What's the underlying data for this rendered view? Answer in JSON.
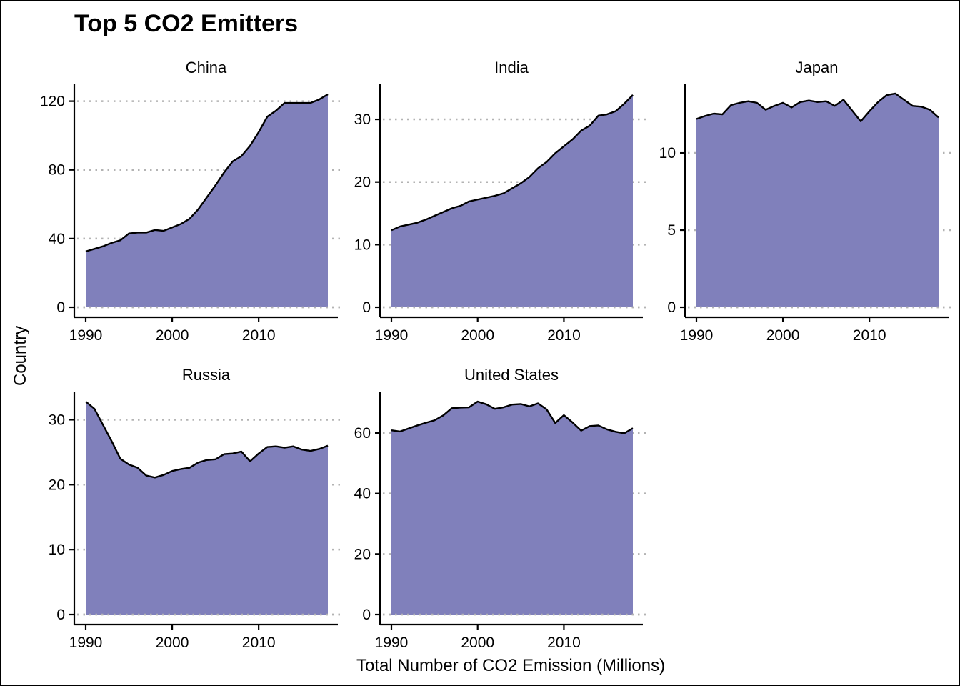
{
  "chart_data": {
    "type": "area",
    "title": "Top 5 CO2 Emitters",
    "xlabel": "Total Number of CO2 Emission (Millions)",
    "ylabel": "Country",
    "grid": "horizontal dotted major gridlines",
    "fill_color": "#8080bb",
    "line_color": "#000000",
    "x": [
      1990,
      1991,
      1992,
      1993,
      1994,
      1995,
      1996,
      1997,
      1998,
      1999,
      2000,
      2001,
      2002,
      2003,
      2004,
      2005,
      2006,
      2007,
      2008,
      2009,
      2010,
      2011,
      2012,
      2013,
      2014,
      2015,
      2016,
      2017,
      2018
    ],
    "panels": [
      {
        "name": "China",
        "ylim": [
          0,
          124
        ],
        "yticks": [
          "0",
          "40",
          "80",
          "120"
        ],
        "ytick_values": [
          0,
          40,
          80,
          120
        ],
        "xticks": [
          "1990",
          "2000",
          "2010"
        ],
        "values": [
          32.5,
          34,
          35.5,
          37.5,
          39,
          43,
          43.5,
          43.5,
          45,
          44.5,
          46.5,
          48.5,
          51.5,
          57,
          64,
          71,
          78.5,
          85,
          88,
          94,
          102,
          111,
          114.5,
          119,
          119,
          119,
          119,
          121,
          124
        ]
      },
      {
        "name": "India",
        "ylim": [
          0,
          34
        ],
        "yticks": [
          "0",
          "10",
          "20",
          "30"
        ],
        "ytick_values": [
          0,
          10,
          20,
          30
        ],
        "xticks": [
          "1990",
          "2000",
          "2010"
        ],
        "values": [
          12.3,
          12.9,
          13.2,
          13.5,
          14,
          14.6,
          15.2,
          15.8,
          16.2,
          16.9,
          17.2,
          17.5,
          17.8,
          18.2,
          19,
          19.8,
          20.8,
          22.2,
          23.2,
          24.6,
          25.7,
          26.8,
          28.2,
          29,
          30.6,
          30.8,
          31.3,
          32.5,
          33.9
        ]
      },
      {
        "name": "Japan",
        "ylim": [
          0,
          13.8
        ],
        "yticks": [
          "0",
          "5",
          "10"
        ],
        "ytick_values": [
          0,
          5,
          10
        ],
        "xticks": [
          "1990",
          "2000",
          "2010"
        ],
        "values": [
          12.2,
          12.4,
          12.55,
          12.5,
          13.1,
          13.25,
          13.35,
          13.25,
          12.8,
          13.05,
          13.25,
          12.95,
          13.3,
          13.4,
          13.3,
          13.35,
          13.05,
          13.45,
          12.75,
          12.05,
          12.7,
          13.3,
          13.75,
          13.85,
          13.45,
          13.05,
          13,
          12.8,
          12.3
        ]
      },
      {
        "name": "Russia",
        "ylim": [
          0,
          32.8
        ],
        "yticks": [
          "0",
          "10",
          "20",
          "30"
        ],
        "ytick_values": [
          0,
          10,
          20,
          30
        ],
        "xticks": [
          "1990",
          "2000",
          "2010"
        ],
        "values": [
          32.8,
          31.7,
          29.2,
          26.7,
          24,
          23.1,
          22.6,
          21.4,
          21.1,
          21.5,
          22.1,
          22.4,
          22.6,
          23.4,
          23.8,
          23.9,
          24.7,
          24.8,
          25.1,
          23.6,
          24.8,
          25.8,
          25.9,
          25.7,
          25.9,
          25.4,
          25.2,
          25.5,
          26
        ]
      },
      {
        "name": "United States",
        "ylim": [
          0,
          70.4
        ],
        "yticks": [
          "0",
          "20",
          "40",
          "60"
        ],
        "ytick_values": [
          0,
          20,
          40,
          60
        ],
        "xticks": [
          "1990",
          "2000",
          "2010"
        ],
        "values": [
          60.9,
          60.5,
          61.5,
          62.5,
          63.4,
          64.2,
          65.8,
          68.2,
          68.4,
          68.5,
          70.4,
          69.5,
          68,
          68.5,
          69.4,
          69.6,
          68.8,
          69.8,
          67.8,
          63.3,
          65.9,
          63.5,
          60.8,
          62.3,
          62.5,
          61.2,
          60.4,
          59.9,
          61.6
        ]
      }
    ]
  }
}
